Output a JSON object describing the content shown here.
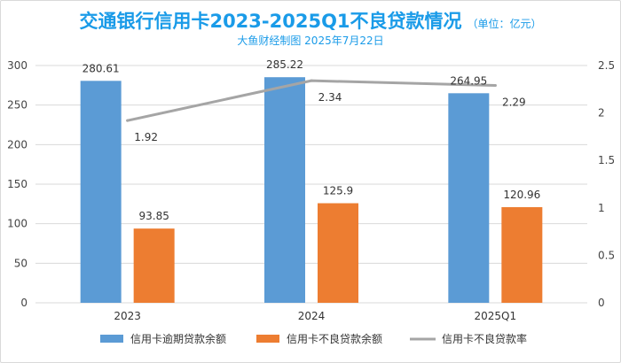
{
  "chart_data": {
    "type": "bar",
    "title": "交通银行信用卡2023-2025Q1不良贷款情况",
    "title_unit": "（单位：亿元）",
    "subtitle": "大鱼财经制图 2025年7月22日",
    "categories": [
      "2023",
      "2024",
      "2025Q1"
    ],
    "series": [
      {
        "name": "信用卡逾期贷款余额",
        "type": "bar",
        "axis": "left",
        "color": "#5b9bd5",
        "values": [
          280.61,
          285.22,
          264.95
        ]
      },
      {
        "name": "信用卡不良贷款余额",
        "type": "bar",
        "axis": "left",
        "color": "#ed7d31",
        "values": [
          93.85,
          125.9,
          120.96
        ]
      },
      {
        "name": "信用卡不良贷款率",
        "type": "line",
        "axis": "right",
        "color": "#a5a5a5",
        "values": [
          1.92,
          2.34,
          2.29
        ]
      }
    ],
    "ylim": [
      0,
      300
    ],
    "yticks": [
      "0",
      "50",
      "100",
      "150",
      "200",
      "250",
      "300"
    ],
    "y2lim": [
      0,
      2.5
    ],
    "y2ticks": [
      "0",
      "0.5",
      "1",
      "1.5",
      "2",
      "2.5"
    ],
    "grid": true,
    "legend_position": "bottom"
  }
}
